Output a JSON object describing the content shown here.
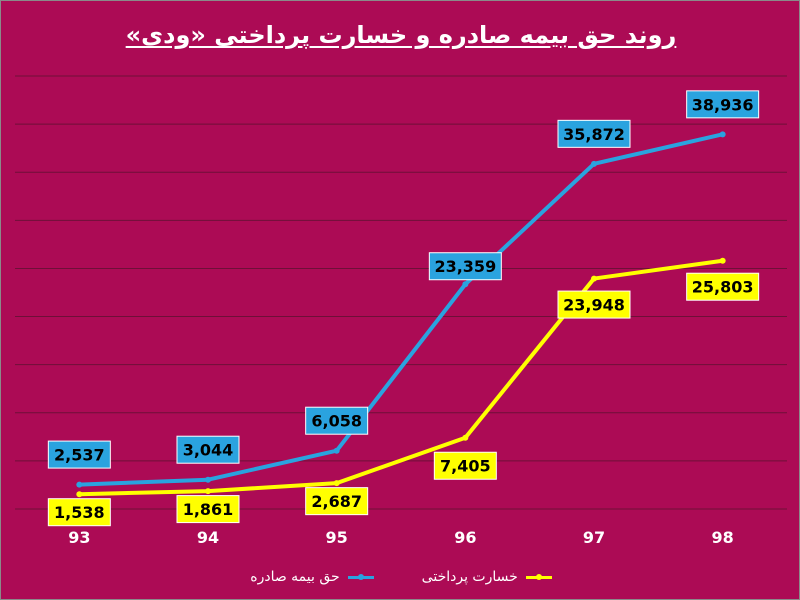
{
  "colors": {
    "background": "#ac0b55",
    "premium": "#2aa3df",
    "loss": "#ffff00",
    "grid": "#6e1038",
    "text": "#ffffff"
  },
  "chart_data": {
    "type": "line",
    "title": "روند حق بیمه صادره و خسارت پرداختی «ودی»",
    "categories": [
      "93",
      "94",
      "95",
      "96",
      "97",
      "98"
    ],
    "series": [
      {
        "name": "حق بیمه صادره",
        "values": [
          2537,
          3044,
          6058,
          23359,
          35872,
          38936
        ],
        "labels": [
          "2,537",
          "3,044",
          "6,058",
          "23,359",
          "35,872",
          "38,936"
        ]
      },
      {
        "name": "خسارت پرداختی",
        "values": [
          1538,
          1861,
          2687,
          7405,
          23948,
          25803
        ],
        "labels": [
          "1,538",
          "1,861",
          "2,687",
          "7,405",
          "23,948",
          "25,803"
        ]
      }
    ],
    "ylim": [
      0,
      45000
    ],
    "grid": true,
    "legend": "bottom"
  }
}
